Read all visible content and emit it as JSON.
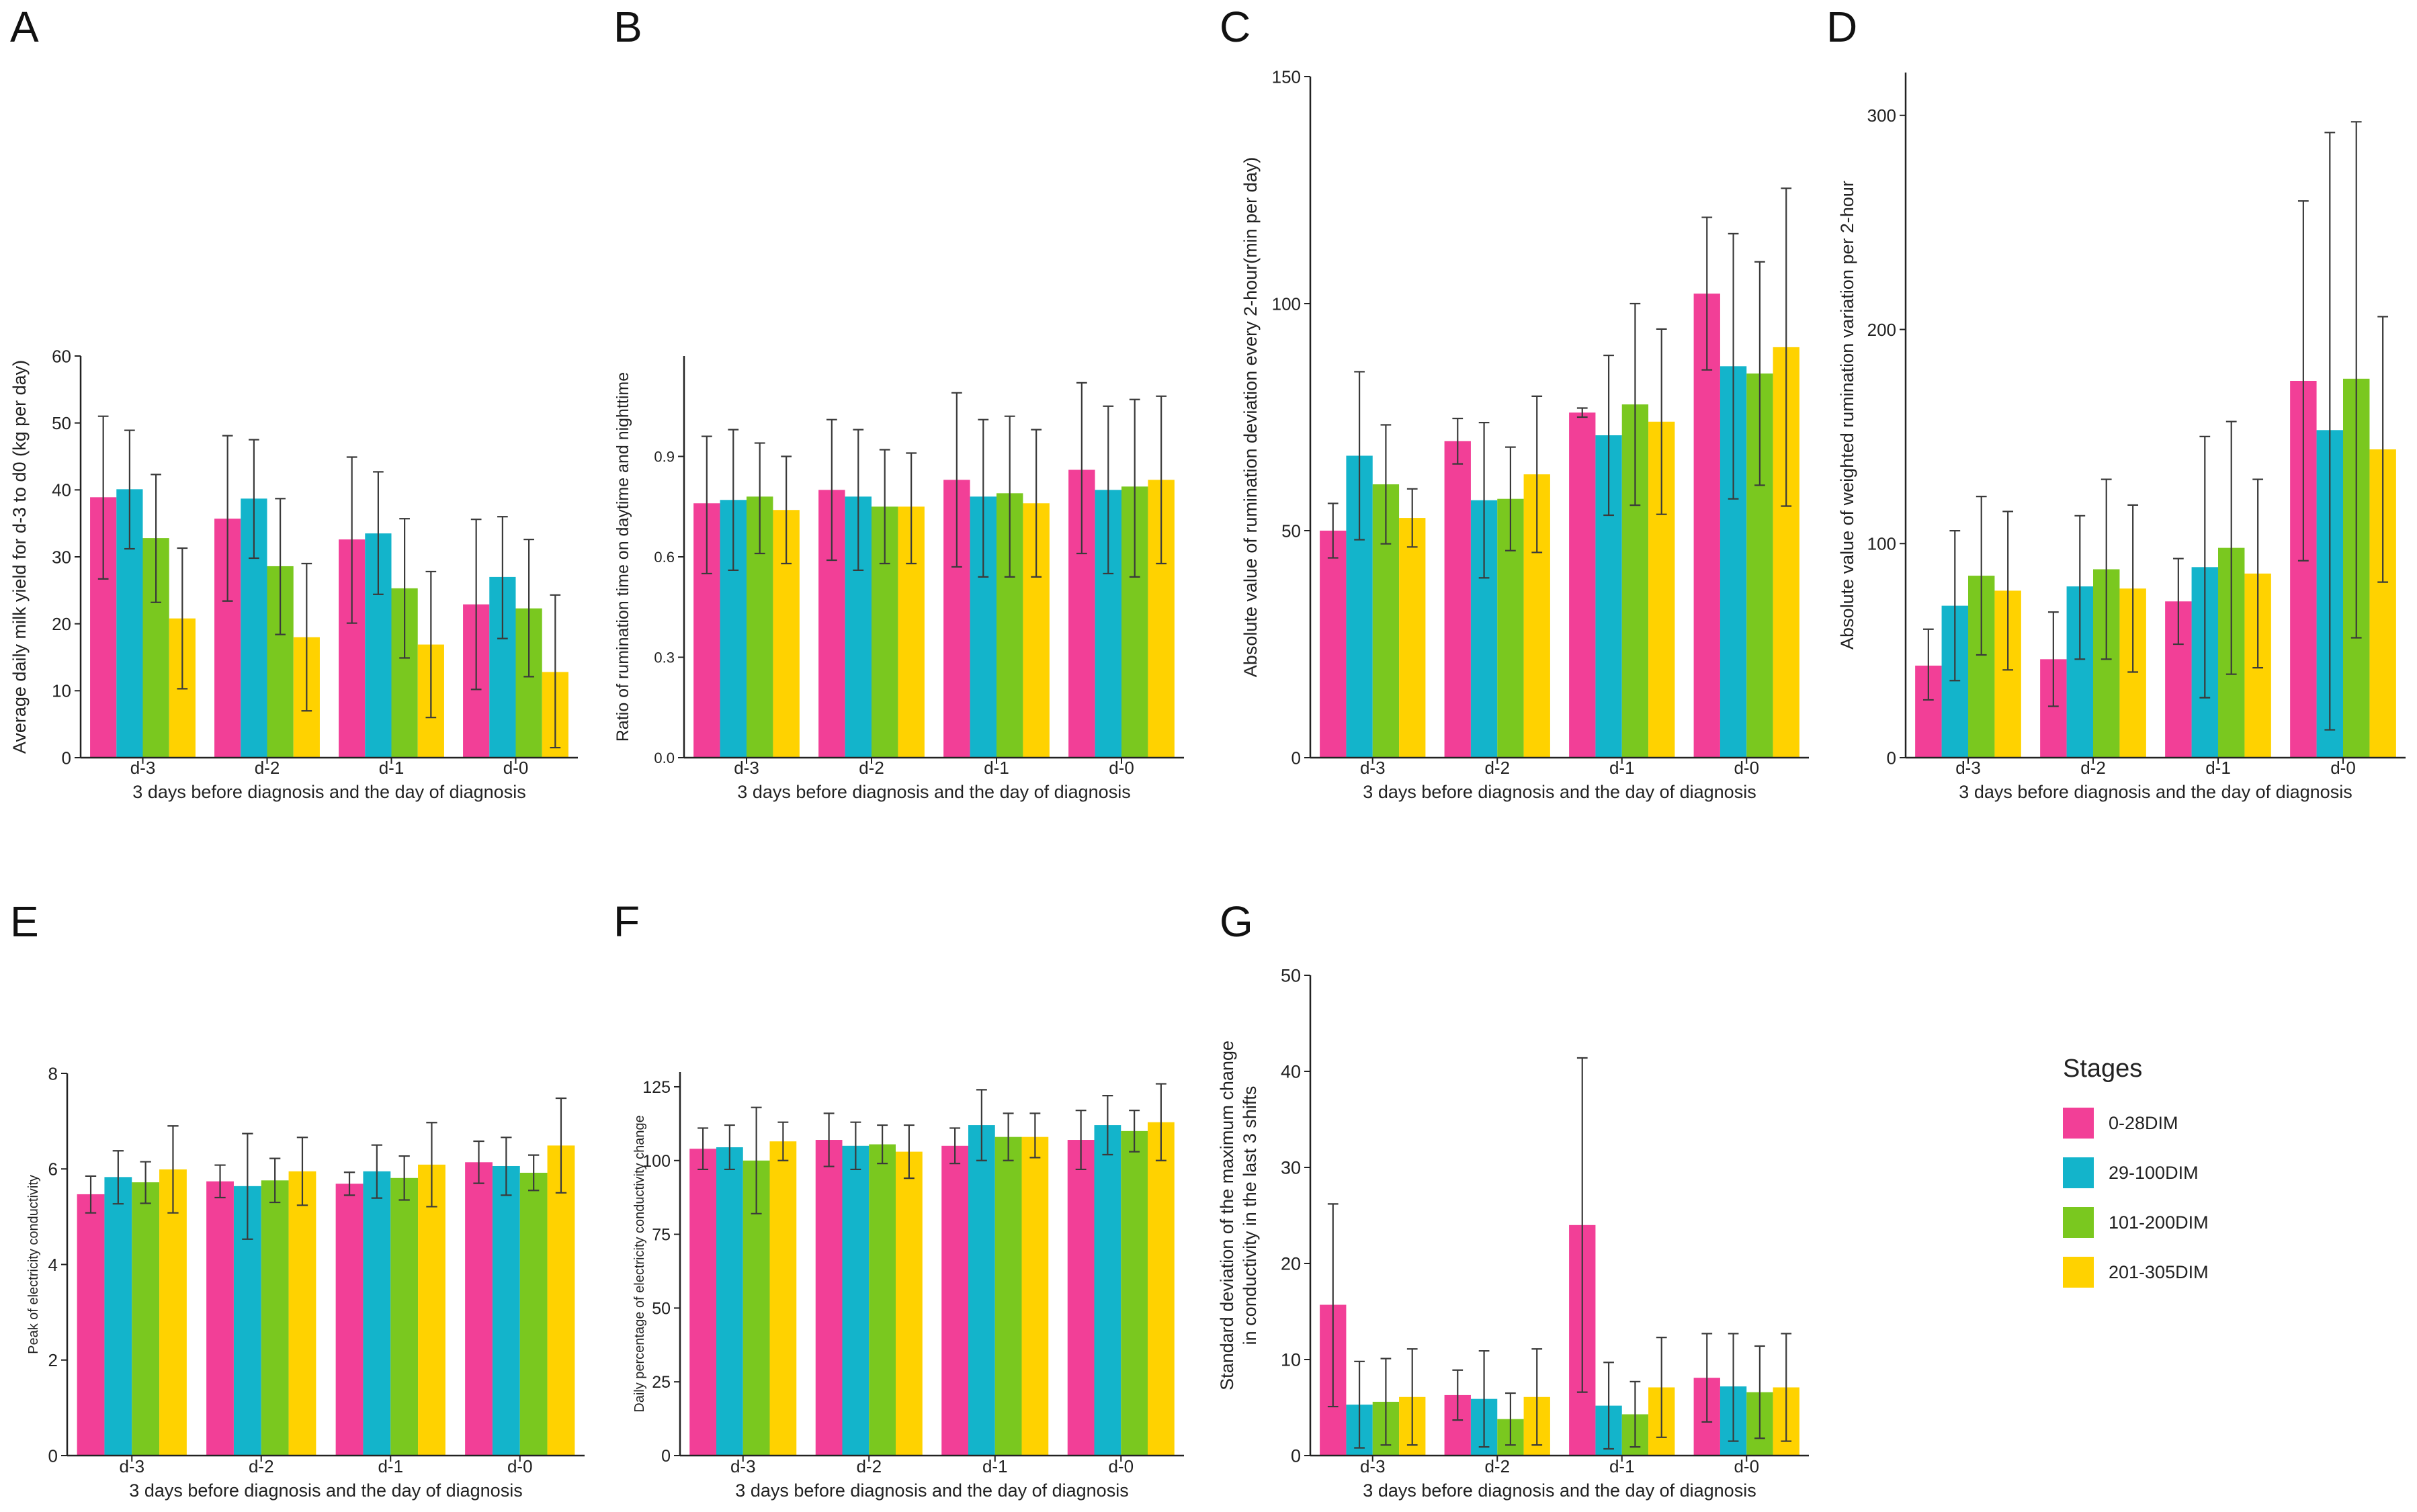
{
  "figure": {
    "stage_colors": [
      "#f23f97",
      "#13b4cb",
      "#7ac81f",
      "#ffd200"
    ],
    "legend": {
      "title": "Stages",
      "items": [
        "0-28DIM",
        "29-100DIM",
        "101-200DIM",
        "201-305DIM"
      ]
    }
  },
  "chart_data": [
    {
      "panel": "A",
      "type": "bar",
      "categories": [
        "d-3",
        "d-2",
        "d-1",
        "d-0"
      ],
      "xlabel": "3 days before diagnosis and the day of diagnosis",
      "ylabel": "Average daily milk yield for d-3 to d0 (kg per day)",
      "ylim": [
        0,
        60
      ],
      "yticks": [
        "0",
        "10",
        "20",
        "30",
        "40",
        "50",
        "60"
      ],
      "ytick_values": [
        0,
        10,
        20,
        30,
        40,
        50,
        60
      ],
      "series": [
        {
          "name": "0-28DIM",
          "values": [
            38.9,
            35.7,
            32.6,
            22.9
          ],
          "err_low": [
            26.7,
            23.4,
            20.1,
            10.2
          ],
          "err_high": [
            51.0,
            48.1,
            44.9,
            35.6
          ]
        },
        {
          "name": "29-100DIM",
          "values": [
            40.1,
            38.7,
            33.5,
            27.0
          ],
          "err_low": [
            31.2,
            29.8,
            24.4,
            17.8
          ],
          "err_high": [
            48.9,
            47.5,
            42.7,
            36.0
          ]
        },
        {
          "name": "101-200DIM",
          "values": [
            32.8,
            28.6,
            25.3,
            22.3
          ],
          "err_low": [
            23.2,
            18.4,
            14.9,
            12.1
          ],
          "err_high": [
            42.3,
            38.7,
            35.7,
            32.6
          ]
        },
        {
          "name": "201-305DIM",
          "values": [
            20.8,
            18.0,
            16.9,
            12.8
          ],
          "err_low": [
            10.3,
            7.0,
            6.0,
            1.5
          ],
          "err_high": [
            31.3,
            29.0,
            27.8,
            24.3
          ]
        }
      ]
    },
    {
      "panel": "B",
      "type": "bar",
      "categories": [
        "d-3",
        "d-2",
        "d-1",
        "d-0"
      ],
      "xlabel": "3 days before diagnosis and the day of diagnosis",
      "ylabel": "Ratio of rumination time on daytime and nighttime",
      "ylim": [
        0,
        1.2
      ],
      "yticks": [
        "0.0",
        "0.3",
        "0.6",
        "0.9"
      ],
      "ytick_values": [
        0,
        0.3,
        0.6,
        0.9
      ],
      "series": [
        {
          "name": "0-28DIM",
          "values": [
            0.76,
            0.8,
            0.83,
            0.86
          ],
          "err_low": [
            0.55,
            0.59,
            0.57,
            0.61
          ],
          "err_high": [
            0.96,
            1.01,
            1.09,
            1.12
          ]
        },
        {
          "name": "29-100DIM",
          "values": [
            0.77,
            0.78,
            0.78,
            0.8
          ],
          "err_low": [
            0.56,
            0.56,
            0.54,
            0.55
          ],
          "err_high": [
            0.98,
            0.98,
            1.01,
            1.05
          ]
        },
        {
          "name": "101-200DIM",
          "values": [
            0.78,
            0.75,
            0.79,
            0.81
          ],
          "err_low": [
            0.61,
            0.58,
            0.54,
            0.54
          ],
          "err_high": [
            0.94,
            0.92,
            1.02,
            1.07
          ]
        },
        {
          "name": "201-305DIM",
          "values": [
            0.74,
            0.75,
            0.76,
            0.83
          ],
          "err_low": [
            0.58,
            0.58,
            0.54,
            0.58
          ],
          "err_high": [
            0.9,
            0.91,
            0.98,
            1.08
          ]
        }
      ]
    },
    {
      "panel": "C",
      "type": "bar",
      "categories": [
        "d-3",
        "d-2",
        "d-1",
        "d-0"
      ],
      "xlabel": "3 days before diagnosis and the day of diagnosis",
      "ylabel": "Absolute value of rumination deviation every 2-hour(min per day)",
      "ylim": [
        0,
        150
      ],
      "yticks": [
        "0",
        "50",
        "100",
        "150"
      ],
      "ytick_values": [
        0,
        50,
        100,
        150
      ],
      "series": [
        {
          "name": "0-28DIM",
          "values": [
            50.0,
            69.7,
            76.0,
            102.2
          ],
          "err_low": [
            44.0,
            64.7,
            75.0,
            85.4
          ],
          "err_high": [
            56.0,
            74.7,
            77.0,
            119.0
          ]
        },
        {
          "name": "29-100DIM",
          "values": [
            66.5,
            56.7,
            71.0,
            86.2
          ],
          "err_low": [
            48.0,
            39.6,
            53.4,
            57.0
          ],
          "err_high": [
            85.0,
            73.8,
            88.6,
            115.4
          ]
        },
        {
          "name": "101-200DIM",
          "values": [
            60.2,
            57.0,
            77.8,
            84.6
          ],
          "err_low": [
            47.1,
            45.6,
            55.6,
            60.0
          ],
          "err_high": [
            73.3,
            68.4,
            100.0,
            109.2
          ]
        },
        {
          "name": "201-305DIM",
          "values": [
            52.8,
            62.4,
            74.0,
            90.4
          ],
          "err_low": [
            46.4,
            45.2,
            53.6,
            55.4
          ],
          "err_high": [
            59.2,
            79.6,
            94.4,
            125.4
          ]
        }
      ]
    },
    {
      "panel": "D",
      "type": "bar",
      "categories": [
        "d-3",
        "d-2",
        "d-1",
        "d-0"
      ],
      "xlabel": "3 days before diagnosis and the day of diagnosis",
      "ylabel": "Absolute value of weighted rumination variation per 2-hour",
      "ylim": [
        0,
        320
      ],
      "yticks": [
        "0",
        "100",
        "200",
        "300"
      ],
      "ytick_values": [
        0,
        100,
        200,
        300
      ],
      "series": [
        {
          "name": "0-28DIM",
          "values": [
            43.0,
            46.0,
            73.0,
            176.0
          ],
          "err_low": [
            27.0,
            24.0,
            53.0,
            92.0
          ],
          "err_high": [
            60.0,
            68.0,
            93.0,
            260.0
          ]
        },
        {
          "name": "29-100DIM",
          "values": [
            71.0,
            80.0,
            89.0,
            153.0
          ],
          "err_low": [
            36.0,
            46.0,
            28.0,
            13.0
          ],
          "err_high": [
            106.0,
            113.0,
            150.0,
            292.0
          ]
        },
        {
          "name": "101-200DIM",
          "values": [
            85.0,
            88.0,
            98.0,
            177.0
          ],
          "err_low": [
            48.0,
            46.0,
            39.0,
            56.0
          ],
          "err_high": [
            122.0,
            130.0,
            157.0,
            297.0
          ]
        },
        {
          "name": "201-305DIM",
          "values": [
            78.0,
            79.0,
            86.0,
            144.0
          ],
          "err_low": [
            41.0,
            40.0,
            42.0,
            82.0
          ],
          "err_high": [
            115.0,
            118.0,
            130.0,
            206.0
          ]
        }
      ]
    },
    {
      "panel": "E",
      "type": "bar",
      "categories": [
        "d-3",
        "d-2",
        "d-1",
        "d-0"
      ],
      "xlabel": "3 days before diagnosis and the day of diagnosis",
      "ylabel": "Peak of electricity conductivity",
      "ylim": [
        0,
        8
      ],
      "yticks": [
        "0",
        "2",
        "4",
        "6",
        "8"
      ],
      "ytick_values": [
        0,
        2,
        4,
        6,
        8
      ],
      "series": [
        {
          "name": "0-28DIM",
          "values": [
            5.47,
            5.74,
            5.69,
            6.14
          ],
          "err_low": [
            5.08,
            5.4,
            5.45,
            5.7
          ],
          "err_high": [
            5.85,
            6.08,
            5.93,
            6.58
          ]
        },
        {
          "name": "29-100DIM",
          "values": [
            5.83,
            5.64,
            5.95,
            6.06
          ],
          "err_low": [
            5.27,
            4.53,
            5.39,
            5.45
          ],
          "err_high": [
            6.38,
            6.74,
            6.5,
            6.66
          ]
        },
        {
          "name": "101-200DIM",
          "values": [
            5.72,
            5.76,
            5.81,
            5.92
          ],
          "err_low": [
            5.28,
            5.3,
            5.35,
            5.55
          ],
          "err_high": [
            6.15,
            6.22,
            6.27,
            6.29
          ]
        },
        {
          "name": "201-305DIM",
          "values": [
            5.99,
            5.95,
            6.09,
            6.49
          ],
          "err_low": [
            5.08,
            5.24,
            5.21,
            5.5
          ],
          "err_high": [
            6.9,
            6.66,
            6.97,
            7.48
          ]
        }
      ]
    },
    {
      "panel": "F",
      "type": "bar",
      "categories": [
        "d-3",
        "d-2",
        "d-1",
        "d-0"
      ],
      "xlabel": "3 days before diagnosis and the day of diagnosis",
      "ylabel": "Daily percentage of electricity conductivity change",
      "ylim": [
        0,
        130
      ],
      "yticks": [
        "0",
        "25",
        "50",
        "75",
        "100",
        "125"
      ],
      "ytick_values": [
        0,
        25,
        50,
        75,
        100,
        125
      ],
      "series": [
        {
          "name": "0-28DIM",
          "values": [
            104.0,
            107.0,
            105.0,
            107.0
          ],
          "err_low": [
            97.0,
            98.0,
            99.0,
            97.0
          ],
          "err_high": [
            111.0,
            116.0,
            111.0,
            117.0
          ]
        },
        {
          "name": "29-100DIM",
          "values": [
            104.5,
            105.0,
            112.0,
            112.0
          ],
          "err_low": [
            97.0,
            97.0,
            100.0,
            102.0
          ],
          "err_high": [
            112.0,
            113.0,
            124.0,
            122.0
          ]
        },
        {
          "name": "101-200DIM",
          "values": [
            100.0,
            105.5,
            108.0,
            110.0
          ],
          "err_low": [
            82.0,
            99.0,
            100.0,
            103.0
          ],
          "err_high": [
            118.0,
            112.0,
            116.0,
            117.0
          ]
        },
        {
          "name": "201-305DIM",
          "values": [
            106.5,
            103.0,
            108.0,
            113.0
          ],
          "err_low": [
            100.0,
            94.0,
            101.0,
            100.0
          ],
          "err_high": [
            113.0,
            112.0,
            116.0,
            126.0
          ]
        }
      ]
    },
    {
      "panel": "G",
      "type": "bar",
      "categories": [
        "d-3",
        "d-2",
        "d-1",
        "d-0"
      ],
      "xlabel": "3 days before diagnosis and the day of diagnosis",
      "ylabel": "Standard deviation of the maximum change in conductivity in the last 3 shifts",
      "ylabel_lines": [
        "Standard deviation of the maximum change",
        "in conductivity in the last 3 shifts"
      ],
      "ylim": [
        0,
        50
      ],
      "yticks": [
        "0",
        "10",
        "20",
        "30",
        "40",
        "50"
      ],
      "ytick_values": [
        0,
        10,
        20,
        30,
        40,
        50
      ],
      "series": [
        {
          "name": "0-28DIM",
          "values": [
            15.7,
            6.3,
            24.0,
            8.1
          ],
          "err_low": [
            5.1,
            3.7,
            6.6,
            3.5
          ],
          "err_high": [
            26.2,
            8.9,
            41.4,
            12.7
          ]
        },
        {
          "name": "29-100DIM",
          "values": [
            5.3,
            5.9,
            5.2,
            7.2
          ],
          "err_low": [
            0.8,
            0.9,
            0.7,
            1.5
          ],
          "err_high": [
            9.8,
            10.9,
            9.7,
            12.7
          ]
        },
        {
          "name": "101-200DIM",
          "values": [
            5.6,
            3.8,
            4.3,
            6.6
          ],
          "err_low": [
            1.1,
            1.1,
            0.9,
            1.8
          ],
          "err_high": [
            10.1,
            6.5,
            7.7,
            11.4
          ]
        },
        {
          "name": "201-305DIM",
          "values": [
            6.1,
            6.1,
            7.1,
            7.1
          ],
          "err_low": [
            1.1,
            1.1,
            1.9,
            1.5
          ],
          "err_high": [
            11.1,
            11.1,
            12.3,
            12.7
          ]
        }
      ]
    }
  ]
}
